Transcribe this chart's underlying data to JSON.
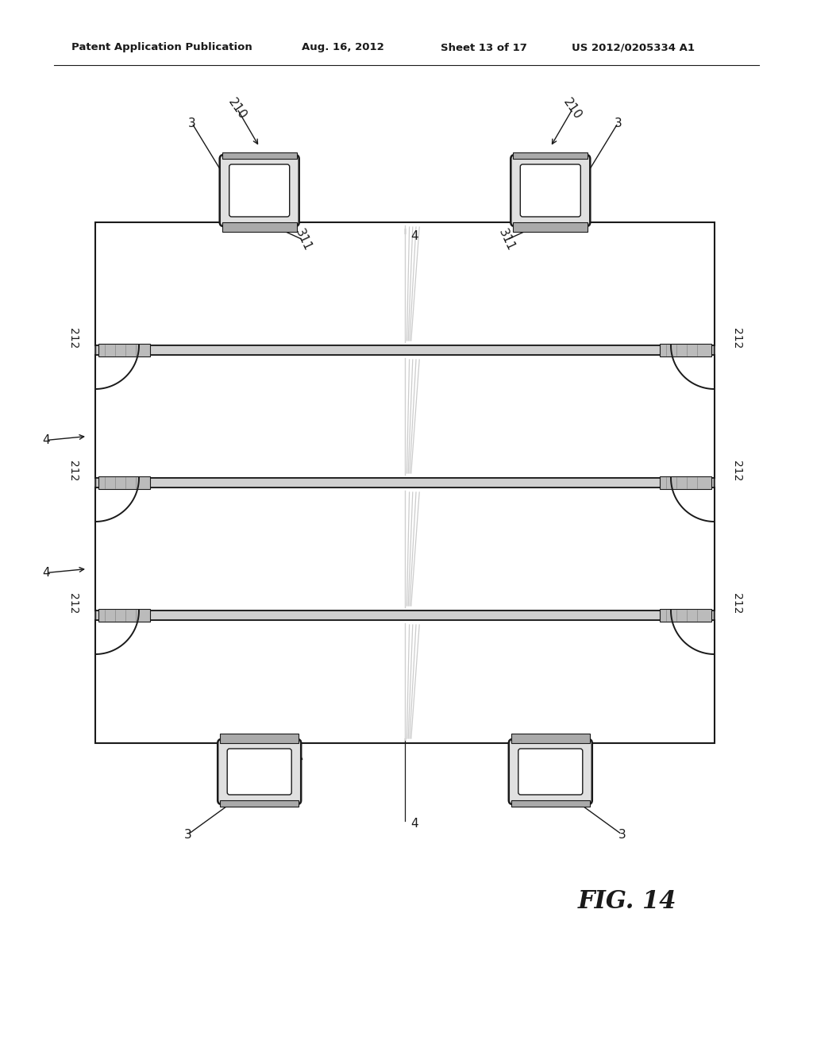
{
  "bg_color": "#ffffff",
  "header_text": "Patent Application Publication",
  "header_date": "Aug. 16, 2012",
  "header_sheet": "Sheet 13 of 17",
  "header_patent": "US 2012/0205334 A1",
  "fig_label": "FIG. 14",
  "line_color": "#1a1a1a",
  "light_gray": "#c8c8c8",
  "med_gray": "#999999",
  "dark_gray": "#555555"
}
